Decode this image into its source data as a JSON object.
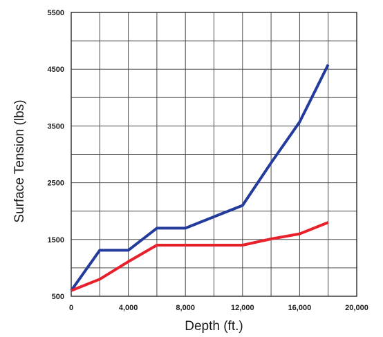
{
  "chart_data": {
    "type": "line",
    "title": "",
    "xlabel": "Depth (ft.)",
    "ylabel": "Surface Tension (lbs)",
    "xlim": [
      0,
      20000
    ],
    "ylim": [
      500,
      5500
    ],
    "x_ticks": [
      0,
      4000,
      8000,
      12000,
      16000,
      20000
    ],
    "x_tick_labels": [
      "0",
      "4,000",
      "8,000",
      "12,000",
      "16,000",
      "20,000"
    ],
    "y_ticks": [
      500,
      1500,
      2500,
      3500,
      4500,
      5500
    ],
    "y_tick_labels": [
      "500",
      "1500",
      "2500",
      "3500",
      "4500",
      "5500"
    ],
    "x_grid_step": 2000,
    "y_grid_step": 500,
    "grid": true,
    "legend": "none",
    "series": [
      {
        "color": "#233b9b",
        "points": [
          [
            0,
            600
          ],
          [
            2000,
            1310
          ],
          [
            4000,
            1310
          ],
          [
            6000,
            1700
          ],
          [
            8000,
            1700
          ],
          [
            10000,
            1900
          ],
          [
            12000,
            2100
          ],
          [
            14000,
            2850
          ],
          [
            16000,
            3570
          ],
          [
            18000,
            4580
          ]
        ]
      },
      {
        "color": "#e8202b",
        "points": [
          [
            0,
            600
          ],
          [
            2000,
            800
          ],
          [
            4000,
            1110
          ],
          [
            6000,
            1400
          ],
          [
            8000,
            1400
          ],
          [
            10000,
            1400
          ],
          [
            12000,
            1400
          ],
          [
            14000,
            1510
          ],
          [
            16000,
            1600
          ],
          [
            18000,
            1800
          ]
        ]
      }
    ]
  }
}
